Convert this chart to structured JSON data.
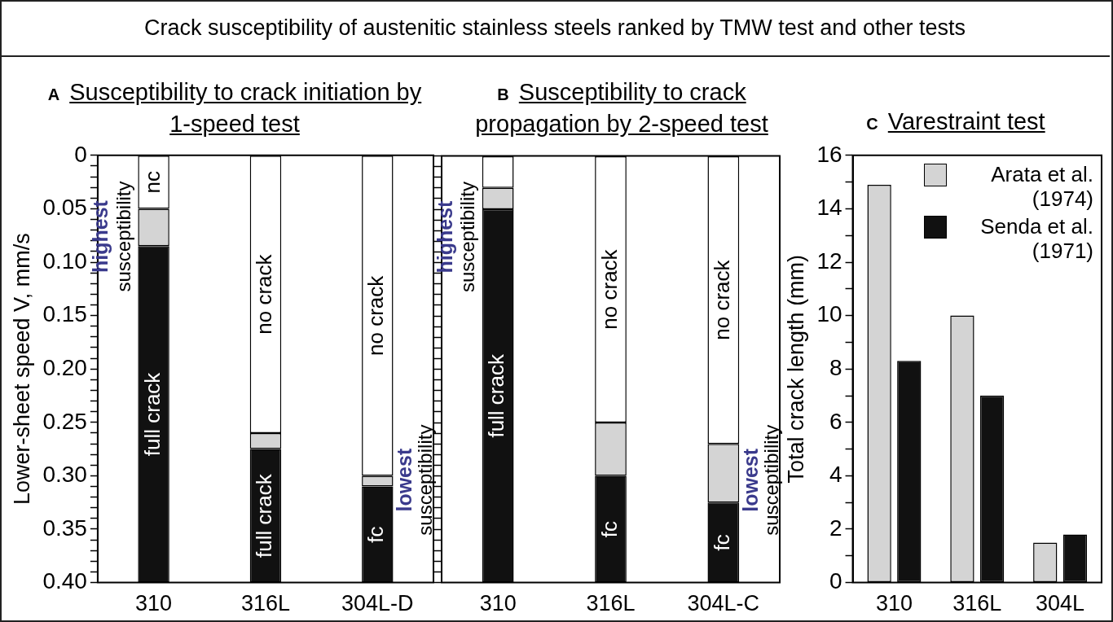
{
  "chart_data": [
    {
      "type": "other",
      "title": "Crack susceptibility of austenitic stainless steels ranked by TMW test and other tests"
    },
    {
      "type": "bar",
      "title": "Susceptibility to crack initiation by 1-speed test",
      "ylabel": "Lower-sheet speed V, mm/s",
      "categories": [
        "310",
        "316L",
        "304L-D"
      ],
      "stacked": true,
      "series": [
        {
          "color": "#ffffff",
          "values": [
            0.05,
            0.26,
            0.3
          ],
          "value_labels": [
            "nc",
            "no crack",
            "no crack"
          ]
        },
        {
          "color": "#d4d4d4",
          "values": [
            0.035,
            0.015,
            0.01
          ]
        },
        {
          "color": "#111111",
          "values": [
            0.315,
            0.125,
            0.09
          ],
          "value_labels": [
            "full crack",
            "full crack",
            "fc"
          ]
        }
      ],
      "ylim": [
        0.4,
        0
      ],
      "yticks": [
        0,
        {
          "value": 0.01,
          "label": null
        },
        {
          "value": 0.02,
          "label": null
        },
        {
          "value": 0.03,
          "label": null
        },
        {
          "value": 0.04,
          "label": null
        },
        0.05,
        {
          "value": 0.06,
          "label": null
        },
        {
          "value": 0.07,
          "label": null
        },
        {
          "value": 0.08,
          "label": null
        },
        {
          "value": 0.09,
          "label": null
        },
        {
          "value": 0.1,
          "label": "0.10"
        },
        {
          "value": 0.11,
          "label": null
        },
        {
          "value": 0.12,
          "label": null
        },
        {
          "value": 0.13,
          "label": null
        },
        {
          "value": 0.14,
          "label": null
        },
        0.15,
        {
          "value": 0.16,
          "label": null
        },
        {
          "value": 0.17,
          "label": null
        },
        {
          "value": 0.18,
          "label": null
        },
        {
          "value": 0.19,
          "label": null
        },
        {
          "value": 0.2,
          "label": "0.20"
        },
        {
          "value": 0.21,
          "label": null
        },
        {
          "value": 0.22,
          "label": null
        },
        {
          "value": 0.23,
          "label": null
        },
        {
          "value": 0.24,
          "label": null
        },
        0.25,
        {
          "value": 0.26,
          "label": null
        },
        {
          "value": 0.27,
          "label": null
        },
        {
          "value": 0.28,
          "label": null
        },
        {
          "value": 0.29,
          "label": null
        },
        {
          "value": 0.3,
          "label": "0.30"
        },
        {
          "value": 0.31,
          "label": null
        },
        {
          "value": 0.32,
          "label": null
        },
        {
          "value": 0.33,
          "label": null
        },
        {
          "value": 0.34,
          "label": null
        },
        0.35,
        {
          "value": 0.36,
          "label": null
        },
        {
          "value": 0.37,
          "label": null
        },
        {
          "value": 0.38,
          "label": null
        },
        {
          "value": 0.39,
          "label": null
        },
        {
          "value": 0.4,
          "label": "0.40"
        }
      ],
      "annotations": [
        "A",
        "highest susceptibility",
        "lowest susceptibility"
      ]
    },
    {
      "type": "bar",
      "title": "Susceptibility to crack propagation by 2-speed test",
      "categories": [
        "310",
        "316L",
        "304L-C"
      ],
      "stacked": true,
      "tick_labels": "x",
      "series": [
        {
          "color": "#ffffff",
          "values": [
            0.03,
            0.25,
            0.27
          ],
          "value_labels": [
            null,
            "no crack",
            "no crack"
          ]
        },
        {
          "color": "#d4d4d4",
          "values": [
            0.02,
            0.05,
            0.055
          ]
        },
        {
          "color": "#111111",
          "values": [
            0.35,
            0.1,
            0.075
          ],
          "value_labels": [
            "full crack",
            "fc",
            "fc"
          ]
        }
      ],
      "ylim": [
        0.4,
        0
      ],
      "yticks": [
        0,
        0.01,
        0.02,
        0.03,
        0.04,
        0.05,
        0.06,
        0.07,
        0.08,
        0.09,
        0.1,
        0.11,
        0.12,
        0.13,
        0.14,
        0.15,
        0.16,
        0.17,
        0.18,
        0.19,
        0.2,
        0.21,
        0.22,
        0.23,
        0.24,
        0.25,
        0.26,
        0.27,
        0.28,
        0.29,
        0.3,
        0.31,
        0.32,
        0.33,
        0.34,
        0.35,
        0.36,
        0.37,
        0.38,
        0.39,
        0.4
      ],
      "annotations": [
        "B",
        "highest susceptibility",
        "lowest susceptibility"
      ]
    },
    {
      "type": "bar",
      "title": "Varestraint test",
      "ylabel": "Total crack length (mm)",
      "categories": [
        "310",
        "316L",
        "304L"
      ],
      "series": [
        {
          "name": "Arata et al. (1974)",
          "color": "#d4d4d4",
          "values": [
            14.9,
            10.0,
            1.5
          ]
        },
        {
          "name": "Senda et al. (1971)",
          "color": "#111111",
          "values": [
            8.3,
            7.0,
            1.8
          ]
        }
      ],
      "ylim": [
        0,
        16
      ],
      "yticks": [
        0,
        {
          "value": 1,
          "label": null
        },
        2,
        {
          "value": 3,
          "label": null
        },
        4,
        {
          "value": 5,
          "label": null
        },
        6,
        {
          "value": 7,
          "label": null
        },
        8,
        {
          "value": 9,
          "label": null
        },
        10,
        {
          "value": 11,
          "label": null
        },
        12,
        {
          "value": 13,
          "label": null
        },
        14,
        {
          "value": 15,
          "label": null
        },
        16
      ],
      "legend": "top right",
      "annotations": [
        "C"
      ]
    }
  ]
}
